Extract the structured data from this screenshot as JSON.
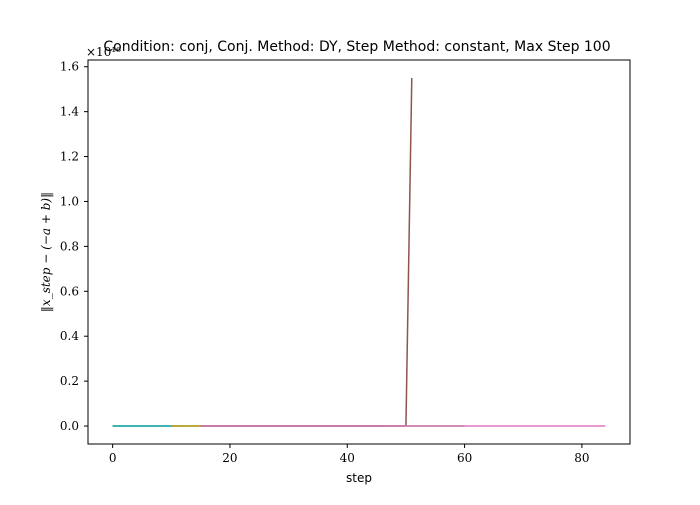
{
  "chart_data": {
    "type": "line",
    "title": "Condition: conj, Conj. Method: DY, Step Method: constant, Max Step 100",
    "xlabel": "step",
    "ylabel": "‖x_step − (−a + b)‖",
    "y_offset_label": "×10¹⁶",
    "xlim": [
      -4.2,
      88.2
    ],
    "ylim": [
      -0.08,
      1.63
    ],
    "x_ticks": [
      0,
      20,
      40,
      60,
      80
    ],
    "y_ticks": [
      0.0,
      0.2,
      0.4,
      0.6,
      0.8,
      1.0,
      1.2,
      1.4,
      1.6
    ],
    "x_tick_labels": [
      "0",
      "20",
      "40",
      "60",
      "80"
    ],
    "y_tick_labels": [
      "0.0",
      "0.2",
      "0.4",
      "0.6",
      "0.8",
      "1.0",
      "1.2",
      "1.4",
      "1.6"
    ],
    "grid": false,
    "series": [
      {
        "color": "#1f77b4",
        "x": [
          0,
          46
        ],
        "y": [
          0,
          0
        ]
      },
      {
        "color": "#ff7f0e",
        "x": [
          0,
          15
        ],
        "y": [
          0,
          0
        ]
      },
      {
        "color": "#2ca02c",
        "x": [
          0,
          60
        ],
        "y": [
          0,
          0
        ]
      },
      {
        "color": "#d62728",
        "x": [
          0,
          12
        ],
        "y": [
          0,
          0
        ]
      },
      {
        "color": "#9467bd",
        "x": [
          0,
          8
        ],
        "y": [
          0,
          0
        ]
      },
      {
        "color": "#8c564b",
        "x": [
          0,
          50,
          51
        ],
        "y": [
          0,
          0,
          1.55
        ]
      },
      {
        "color": "#e377c2",
        "x": [
          0,
          84
        ],
        "y": [
          0,
          0
        ]
      },
      {
        "color": "#7f7f7f",
        "x": [
          0,
          5
        ],
        "y": [
          0,
          0
        ]
      },
      {
        "color": "#bcbd22",
        "x": [
          0,
          15
        ],
        "y": [
          0,
          0
        ]
      },
      {
        "color": "#17becf",
        "x": [
          0,
          10
        ],
        "y": [
          0,
          0
        ]
      }
    ]
  }
}
